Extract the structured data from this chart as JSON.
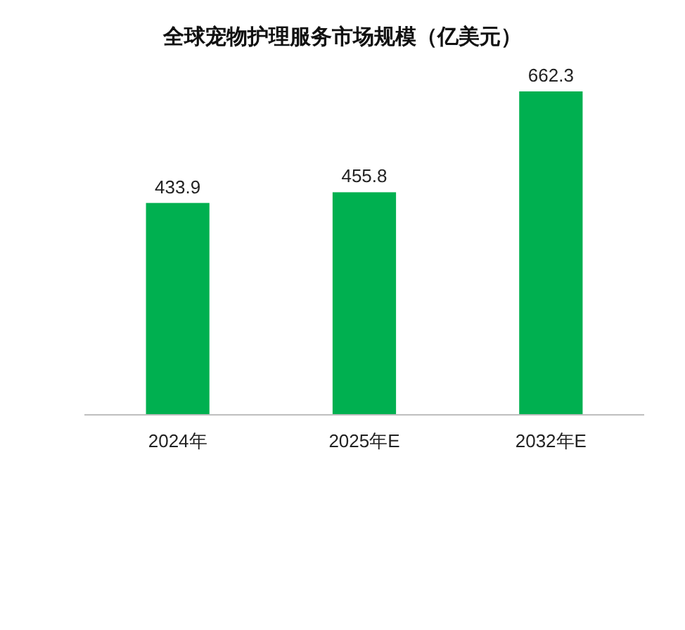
{
  "chart_data": {
    "type": "bar",
    "title": "全球宠物护理服务市场规模（亿美元）",
    "categories": [
      "2024年",
      "2025年E",
      "2032年E"
    ],
    "values": [
      433.9,
      455.8,
      662.3
    ],
    "color": "#00b050",
    "data_labels": true
  }
}
